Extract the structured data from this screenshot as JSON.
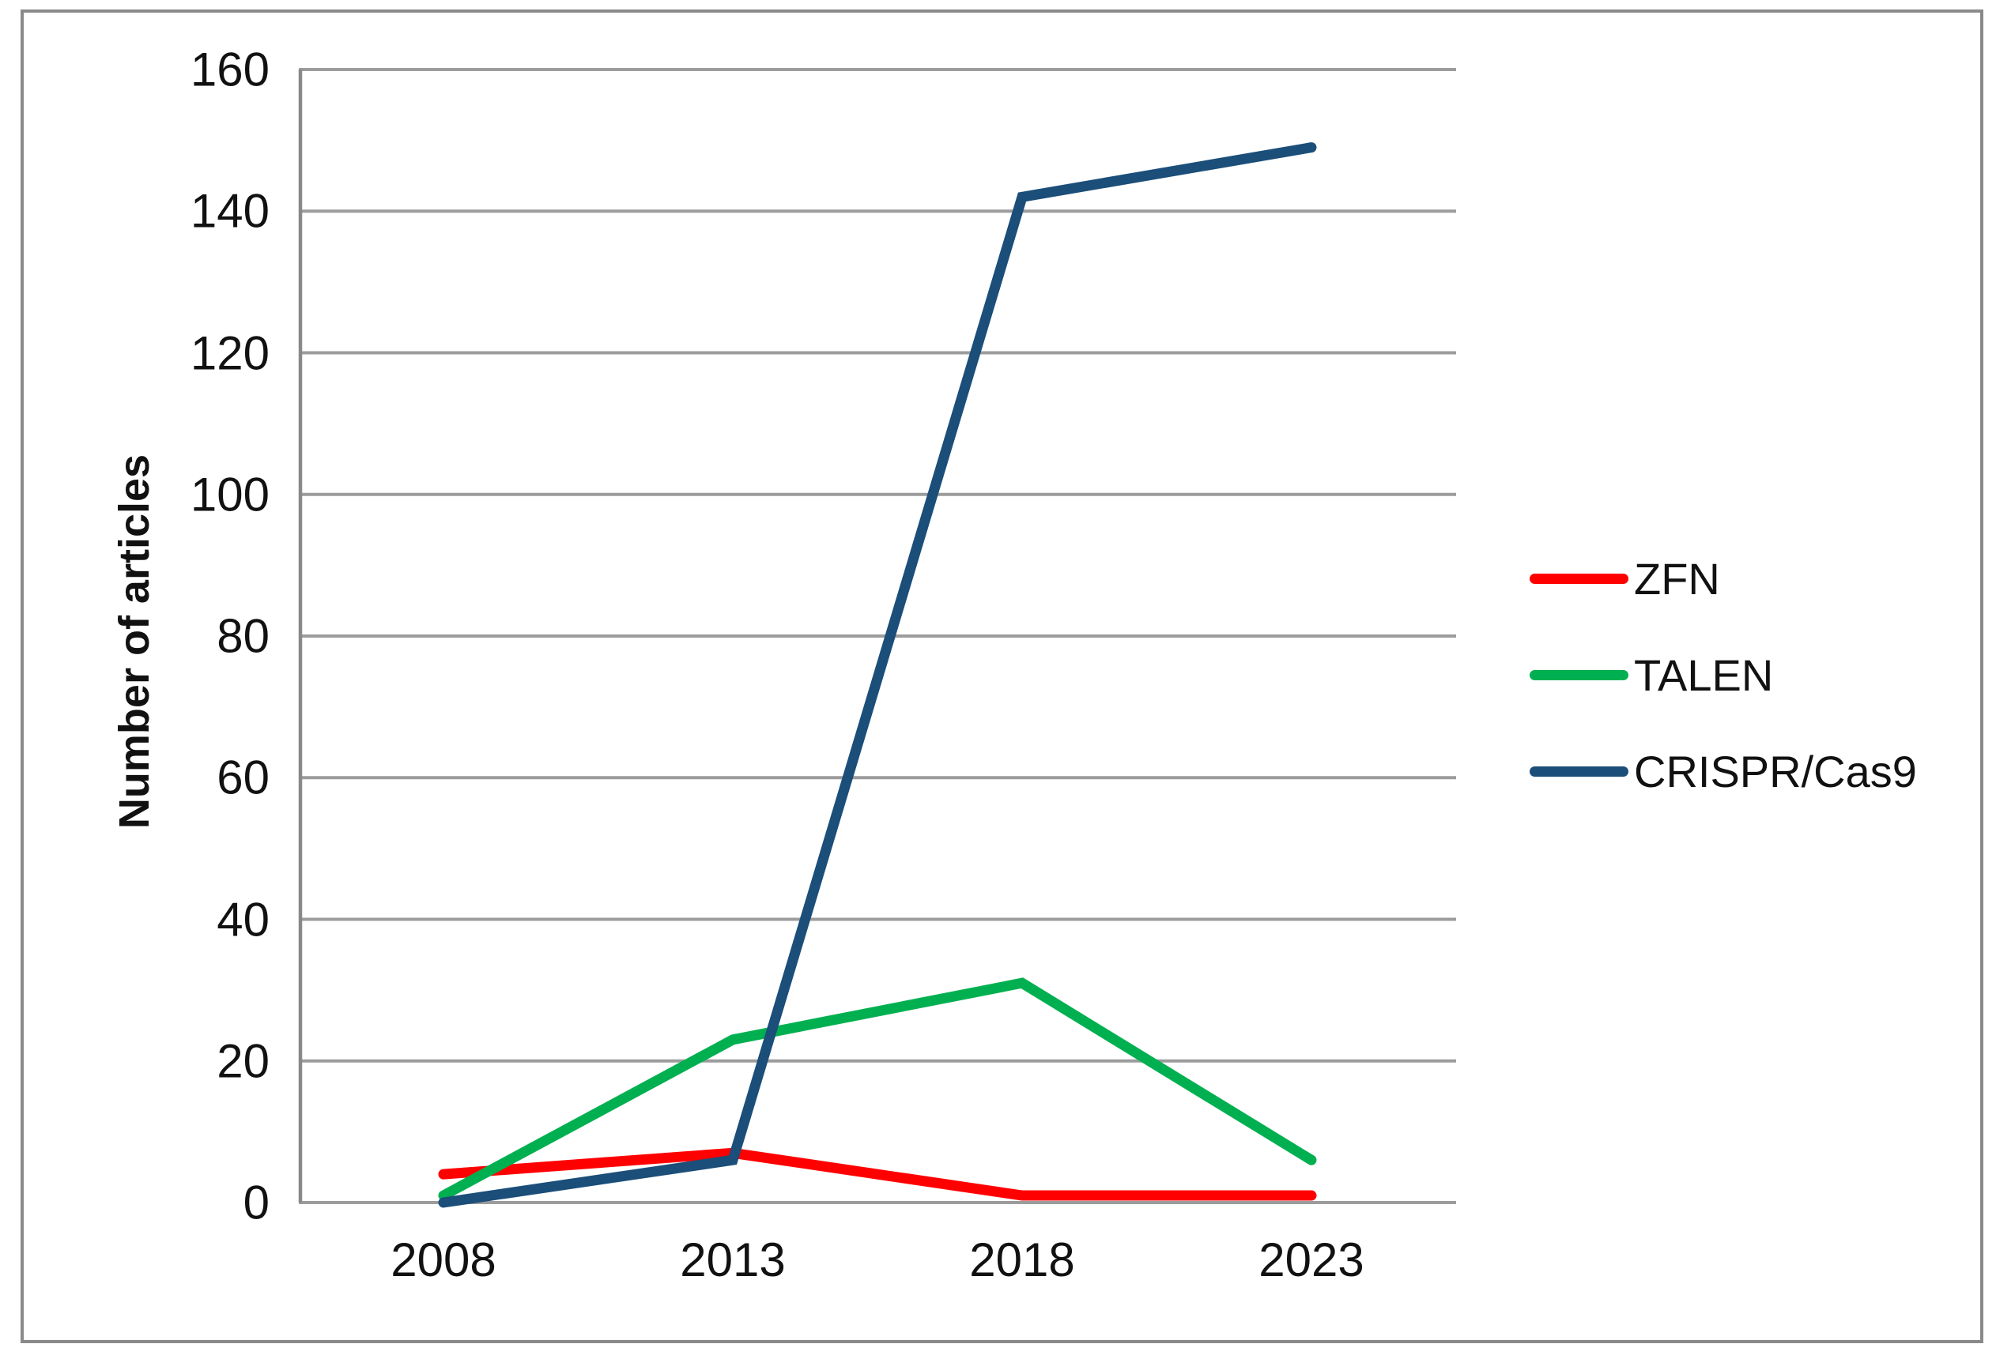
{
  "chart_data": {
    "type": "line",
    "title": "",
    "xlabel": "",
    "ylabel": "Number of articles",
    "categories": [
      "2008",
      "2013",
      "2018",
      "2023"
    ],
    "series": [
      {
        "name": "ZFN",
        "color": "#FF0000",
        "values": [
          4,
          7,
          1,
          1
        ]
      },
      {
        "name": "TALEN",
        "color": "#00B050",
        "values": [
          1,
          23,
          31,
          6
        ]
      },
      {
        "name": "CRISPR/Cas9",
        "color": "#1B4E79",
        "values": [
          0,
          6,
          142,
          149
        ]
      }
    ],
    "ylim": [
      0,
      160
    ],
    "yticks": [
      0,
      20,
      40,
      60,
      80,
      100,
      120,
      140,
      160
    ],
    "grid": "horizontal",
    "legend_position": "right"
  },
  "colors": {
    "background": "#FFFFFF",
    "figure_border": "#8A8A8A",
    "gridline": "#9C9C9C",
    "axis_line": "#898989",
    "text": "#111111"
  }
}
